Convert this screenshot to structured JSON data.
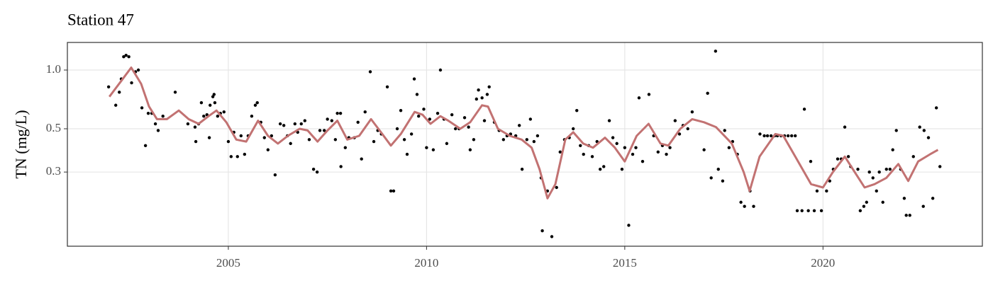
{
  "chart_data": {
    "type": "scatter",
    "title": "Station 47",
    "ylabel": "TN (mg/L)",
    "xlim": [
      2000.94,
      2024.02
    ],
    "xticks": [
      2005,
      2010,
      2015,
      2020
    ],
    "ylim": [
      0.125,
      1.385
    ],
    "yticks": [
      0.3,
      0.5,
      {
        "value": 1,
        "label": "1.0"
      }
    ],
    "log_y": true,
    "grid": true,
    "series": [
      {
        "mode": "points",
        "color": "#000000",
        "x": [
          2001.98,
          2002.16,
          2002.25,
          2002.3,
          2002.36,
          2002.42,
          2002.49,
          2002.56,
          2002.66,
          2002.73,
          2002.82,
          2002.91,
          2002.98,
          2003.07,
          2003.16,
          2003.23,
          2003.35,
          2003.66,
          2003.98,
          2004.16,
          2004.18,
          2004.25,
          2004.32,
          2004.38,
          2004.46,
          2004.52,
          2004.54,
          2004.61,
          2004.64,
          2004.66,
          2004.73,
          2004.8,
          2004.89,
          2005.0,
          2005.07,
          2005.14,
          2005.23,
          2005.32,
          2005.41,
          2005.5,
          2005.59,
          2005.68,
          2005.73,
          2005.82,
          2005.91,
          2006.0,
          2006.09,
          2006.18,
          2006.31,
          2006.4,
          2006.49,
          2006.57,
          2006.68,
          2006.75,
          2006.84,
          2006.93,
          2007.04,
          2007.15,
          2007.24,
          2007.31,
          2007.42,
          2007.5,
          2007.61,
          2007.7,
          2007.75,
          2007.83,
          2007.84,
          2007.95,
          2008.04,
          2008.18,
          2008.27,
          2008.36,
          2008.45,
          2008.58,
          2008.67,
          2008.77,
          2008.86,
          2009.01,
          2009.1,
          2009.17,
          2009.26,
          2009.35,
          2009.44,
          2009.51,
          2009.62,
          2009.69,
          2009.76,
          2009.8,
          2009.93,
          2010.0,
          2010.08,
          2010.17,
          2010.28,
          2010.35,
          2010.44,
          2010.51,
          2010.64,
          2010.73,
          2010.82,
          2010.96,
          2011.06,
          2011.1,
          2011.19,
          2011.26,
          2011.31,
          2011.4,
          2011.46,
          2011.53,
          2011.58,
          2011.71,
          2011.83,
          2011.94,
          2012.03,
          2012.12,
          2012.25,
          2012.34,
          2012.41,
          2012.53,
          2012.62,
          2012.71,
          2012.8,
          2012.89,
          2012.92,
          2013.05,
          2013.16,
          2013.28,
          2013.37,
          2013.48,
          2013.6,
          2013.7,
          2013.79,
          2013.88,
          2013.96,
          2014.09,
          2014.18,
          2014.3,
          2014.38,
          2014.47,
          2014.61,
          2014.7,
          2014.8,
          2014.93,
          2015.0,
          2015.1,
          2015.2,
          2015.28,
          2015.36,
          2015.45,
          2015.61,
          2015.73,
          2015.84,
          2015.95,
          2016.05,
          2016.14,
          2016.27,
          2016.38,
          2016.47,
          2016.59,
          2016.7,
          2017.0,
          2017.09,
          2017.18,
          2017.29,
          2017.36,
          2017.47,
          2017.52,
          2017.63,
          2017.72,
          2017.84,
          2017.93,
          2018.02,
          2018.16,
          2018.25,
          2018.41,
          2018.52,
          2018.6,
          2018.69,
          2018.78,
          2018.85,
          2018.94,
          2019.03,
          2019.12,
          2019.21,
          2019.3,
          2019.35,
          2019.47,
          2019.53,
          2019.63,
          2019.69,
          2019.78,
          2019.85,
          2019.96,
          2020.09,
          2020.17,
          2020.26,
          2020.37,
          2020.46,
          2020.55,
          2020.64,
          2020.7,
          2020.88,
          2020.94,
          2021.03,
          2021.1,
          2021.17,
          2021.26,
          2021.35,
          2021.42,
          2021.51,
          2021.6,
          2021.69,
          2021.76,
          2021.85,
          2021.96,
          2022.05,
          2022.1,
          2022.19,
          2022.28,
          2022.44,
          2022.53,
          2022.55,
          2022.66,
          2022.77,
          2022.86,
          2022.95
        ],
        "values": [
          0.82,
          0.66,
          0.77,
          0.9,
          1.17,
          1.19,
          1.17,
          0.86,
          0.98,
          1.0,
          0.64,
          0.41,
          0.6,
          0.6,
          0.53,
          0.49,
          0.58,
          0.77,
          0.53,
          0.51,
          0.43,
          0.53,
          0.68,
          0.58,
          0.59,
          0.45,
          0.66,
          0.73,
          0.75,
          0.68,
          0.58,
          0.6,
          0.61,
          0.43,
          0.36,
          0.48,
          0.36,
          0.46,
          0.37,
          0.46,
          0.58,
          0.66,
          0.68,
          0.54,
          0.45,
          0.39,
          0.46,
          0.29,
          0.53,
          0.52,
          0.46,
          0.42,
          0.53,
          0.48,
          0.53,
          0.55,
          0.44,
          0.31,
          0.3,
          0.49,
          0.49,
          0.56,
          0.55,
          0.44,
          0.6,
          0.6,
          0.32,
          0.4,
          0.45,
          0.45,
          0.54,
          0.35,
          0.61,
          0.98,
          0.43,
          0.49,
          0.47,
          0.82,
          0.24,
          0.24,
          0.5,
          0.62,
          0.44,
          0.37,
          0.47,
          0.9,
          0.75,
          0.58,
          0.63,
          0.4,
          0.56,
          0.39,
          0.6,
          1.0,
          0.56,
          0.42,
          0.59,
          0.5,
          0.5,
          0.57,
          0.51,
          0.39,
          0.44,
          0.71,
          0.79,
          0.72,
          0.55,
          0.75,
          0.82,
          0.54,
          0.49,
          0.44,
          0.46,
          0.47,
          0.46,
          0.52,
          0.31,
          0.44,
          0.56,
          0.43,
          0.46,
          0.28,
          0.15,
          0.24,
          0.14,
          0.25,
          0.38,
          0.44,
          0.45,
          0.5,
          0.62,
          0.41,
          0.37,
          0.41,
          0.36,
          0.43,
          0.31,
          0.32,
          0.55,
          0.45,
          0.42,
          0.31,
          0.4,
          0.16,
          0.37,
          0.4,
          0.72,
          0.34,
          0.75,
          0.46,
          0.38,
          0.41,
          0.37,
          0.4,
          0.55,
          0.47,
          0.52,
          0.5,
          0.61,
          0.39,
          0.76,
          0.28,
          1.25,
          0.31,
          0.27,
          0.49,
          0.4,
          0.43,
          0.37,
          0.21,
          0.2,
          0.24,
          0.2,
          0.47,
          0.46,
          0.46,
          0.46,
          0.46,
          0.46,
          0.46,
          0.46,
          0.46,
          0.46,
          0.46,
          0.19,
          0.19,
          0.63,
          0.19,
          0.34,
          0.19,
          0.24,
          0.19,
          0.24,
          0.27,
          0.31,
          0.35,
          0.35,
          0.51,
          0.36,
          0.32,
          0.31,
          0.19,
          0.2,
          0.21,
          0.3,
          0.28,
          0.24,
          0.3,
          0.21,
          0.31,
          0.31,
          0.39,
          0.49,
          0.31,
          0.22,
          0.18,
          0.18,
          0.36,
          0.51,
          0.2,
          0.49,
          0.45,
          0.22,
          0.64,
          0.32
        ]
      },
      {
        "mode": "line",
        "color": "#c27272",
        "x": [
          2002.0,
          2002.3,
          2002.55,
          2002.8,
          2003.0,
          2003.2,
          2003.45,
          2003.75,
          2004.0,
          2004.25,
          2004.5,
          2004.7,
          2004.95,
          2005.2,
          2005.45,
          2005.75,
          2006.0,
          2006.25,
          2006.5,
          2006.8,
          2007.0,
          2007.25,
          2007.5,
          2007.75,
          2008.0,
          2008.3,
          2008.6,
          2008.85,
          2009.1,
          2009.35,
          2009.7,
          2009.9,
          2010.1,
          2010.35,
          2010.55,
          2010.85,
          2011.1,
          2011.4,
          2011.55,
          2011.8,
          2012.1,
          2012.4,
          2012.65,
          2012.85,
          2013.05,
          2013.25,
          2013.5,
          2013.7,
          2013.95,
          2014.2,
          2014.5,
          2014.75,
          2015.0,
          2015.3,
          2015.6,
          2015.9,
          2016.1,
          2016.4,
          2016.7,
          2017.0,
          2017.3,
          2017.7,
          2018.0,
          2018.15,
          2018.4,
          2018.8,
          2019.0,
          2019.3,
          2019.7,
          2020.0,
          2020.25,
          2020.55,
          2020.8,
          2021.05,
          2021.3,
          2021.6,
          2021.9,
          2022.15,
          2022.4,
          2022.7,
          2022.9
        ],
        "values": [
          0.73,
          0.88,
          1.03,
          0.85,
          0.65,
          0.56,
          0.56,
          0.62,
          0.56,
          0.53,
          0.58,
          0.62,
          0.54,
          0.44,
          0.43,
          0.55,
          0.46,
          0.42,
          0.46,
          0.5,
          0.49,
          0.43,
          0.49,
          0.55,
          0.44,
          0.46,
          0.56,
          0.48,
          0.41,
          0.47,
          0.61,
          0.59,
          0.53,
          0.58,
          0.55,
          0.5,
          0.54,
          0.66,
          0.65,
          0.5,
          0.46,
          0.44,
          0.4,
          0.31,
          0.22,
          0.26,
          0.44,
          0.48,
          0.42,
          0.4,
          0.45,
          0.4,
          0.34,
          0.46,
          0.53,
          0.42,
          0.41,
          0.5,
          0.56,
          0.54,
          0.51,
          0.42,
          0.3,
          0.24,
          0.36,
          0.47,
          0.46,
          0.36,
          0.26,
          0.25,
          0.3,
          0.36,
          0.3,
          0.25,
          0.26,
          0.28,
          0.33,
          0.27,
          0.34,
          0.37,
          0.39
        ]
      }
    ]
  }
}
